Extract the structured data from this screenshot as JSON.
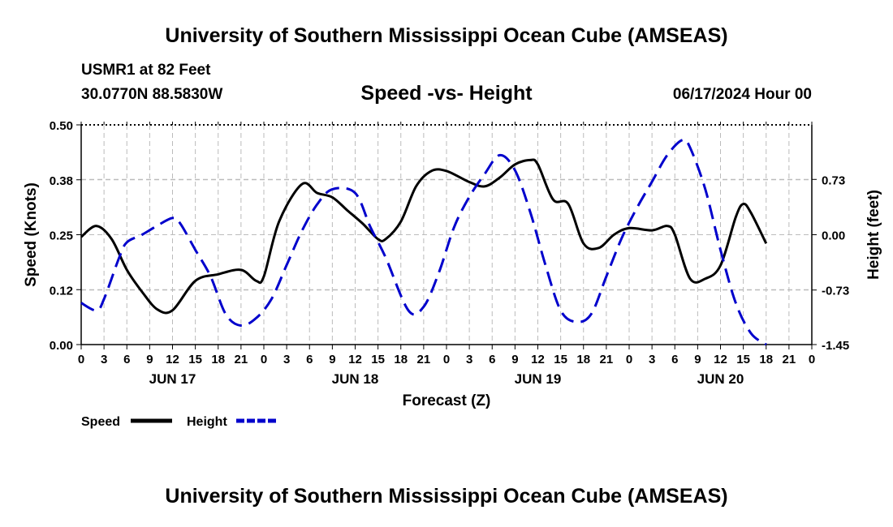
{
  "page": {
    "title_top": "University of Southern Mississippi Ocean Cube (AMSEAS)",
    "title_bottom": "University of Southern Mississippi Ocean Cube (AMSEAS)",
    "station": "USMR1 at 82 Feet",
    "coords": "30.0770N  88.5830W",
    "datetime": "06/17/2024 Hour 00"
  },
  "colors": {
    "speed": "#000000",
    "height": "#0000cc",
    "grid": "#bbbbbb"
  },
  "chart_data": {
    "type": "line",
    "title": "Speed -vs- Height",
    "xlabel": "Forecast (Z)",
    "ylabel": "Speed (Knots)",
    "y2label": "Height (feet)",
    "x_range": [
      0,
      96
    ],
    "ylim": [
      0,
      0.5
    ],
    "y2lim": [
      -1.45,
      1.45
    ],
    "y_ticks": [
      "0.00",
      "0.12",
      "0.25",
      "0.38",
      "0.50"
    ],
    "y2_ticks": [
      "-1.45",
      "-0.73",
      "0.00",
      "0.73"
    ],
    "x_tick_labels": [
      "0",
      "3",
      "6",
      "9",
      "12",
      "15",
      "18",
      "21",
      "0",
      "3",
      "6",
      "9",
      "12",
      "15",
      "18",
      "21",
      "0",
      "3",
      "6",
      "9",
      "12",
      "15",
      "18",
      "21",
      "0",
      "3",
      "6",
      "9",
      "12",
      "15",
      "18",
      "21",
      "0"
    ],
    "day_labels": [
      {
        "label": "JUN 17",
        "hour": 12
      },
      {
        "label": "JUN 18",
        "hour": 36
      },
      {
        "label": "JUN 19",
        "hour": 60
      },
      {
        "label": "JUN 20",
        "hour": 84
      }
    ],
    "series": [
      {
        "name": "Speed",
        "axis": "left",
        "style": "solid",
        "points": [
          [
            0,
            0.245
          ],
          [
            2,
            0.27
          ],
          [
            4,
            0.24
          ],
          [
            6,
            0.17
          ],
          [
            8,
            0.12
          ],
          [
            10,
            0.08
          ],
          [
            12,
            0.078
          ],
          [
            15,
            0.145
          ],
          [
            18,
            0.16
          ],
          [
            21,
            0.17
          ],
          [
            23,
            0.145
          ],
          [
            24,
            0.155
          ],
          [
            26,
            0.28
          ],
          [
            29,
            0.365
          ],
          [
            31,
            0.345
          ],
          [
            33,
            0.335
          ],
          [
            35,
            0.305
          ],
          [
            37,
            0.275
          ],
          [
            39,
            0.24
          ],
          [
            40,
            0.24
          ],
          [
            42,
            0.28
          ],
          [
            44,
            0.36
          ],
          [
            46,
            0.395
          ],
          [
            48,
            0.395
          ],
          [
            51,
            0.37
          ],
          [
            53,
            0.36
          ],
          [
            55,
            0.38
          ],
          [
            57,
            0.41
          ],
          [
            59,
            0.42
          ],
          [
            60,
            0.41
          ],
          [
            62,
            0.33
          ],
          [
            64,
            0.32
          ],
          [
            66,
            0.23
          ],
          [
            68,
            0.22
          ],
          [
            70,
            0.25
          ],
          [
            72,
            0.265
          ],
          [
            75,
            0.26
          ],
          [
            77,
            0.27
          ],
          [
            78,
            0.25
          ],
          [
            80,
            0.15
          ],
          [
            82,
            0.15
          ],
          [
            84,
            0.18
          ],
          [
            86,
            0.29
          ],
          [
            87,
            0.32
          ],
          [
            88,
            0.3
          ],
          [
            90,
            0.23
          ]
        ]
      },
      {
        "name": "Height",
        "axis": "right",
        "style": "dashed",
        "points": [
          [
            0,
            -0.9
          ],
          [
            2,
            -1.0
          ],
          [
            3,
            -0.85
          ],
          [
            5,
            -0.3
          ],
          [
            6,
            -0.1
          ],
          [
            8,
            0.0
          ],
          [
            10,
            0.12
          ],
          [
            12,
            0.22
          ],
          [
            13,
            0.15
          ],
          [
            15,
            -0.2
          ],
          [
            17,
            -0.55
          ],
          [
            19,
            -1.05
          ],
          [
            21,
            -1.2
          ],
          [
            23,
            -1.1
          ],
          [
            25,
            -0.85
          ],
          [
            27,
            -0.4
          ],
          [
            29,
            0.05
          ],
          [
            31,
            0.4
          ],
          [
            33,
            0.6
          ],
          [
            36,
            0.55
          ],
          [
            38,
            0.1
          ],
          [
            40,
            -0.3
          ],
          [
            43,
            -1.0
          ],
          [
            45,
            -0.95
          ],
          [
            47,
            -0.5
          ],
          [
            49,
            0.1
          ],
          [
            51,
            0.5
          ],
          [
            53,
            0.8
          ],
          [
            55,
            1.05
          ],
          [
            57,
            0.85
          ],
          [
            59,
            0.3
          ],
          [
            61,
            -0.4
          ],
          [
            63,
            -1.0
          ],
          [
            65,
            -1.15
          ],
          [
            67,
            -1.05
          ],
          [
            69,
            -0.55
          ],
          [
            71,
            -0.05
          ],
          [
            73,
            0.35
          ],
          [
            75,
            0.7
          ],
          [
            77,
            1.05
          ],
          [
            79,
            1.25
          ],
          [
            80,
            1.15
          ],
          [
            82,
            0.6
          ],
          [
            84,
            -0.2
          ],
          [
            86,
            -0.9
          ],
          [
            88,
            -1.3
          ],
          [
            90,
            -1.45
          ]
        ]
      }
    ],
    "legend": [
      {
        "label": "Speed",
        "series": 0
      },
      {
        "label": "Height",
        "series": 1
      }
    ]
  }
}
